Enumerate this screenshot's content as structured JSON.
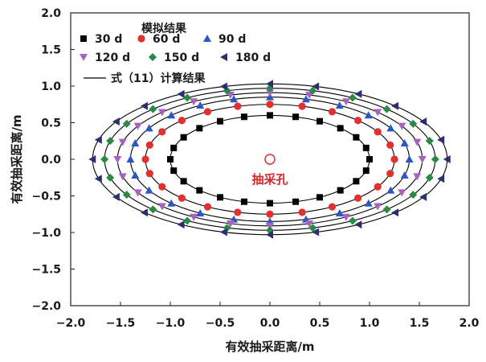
{
  "chart_data": {
    "type": "scatter",
    "xlabel": "有效抽采距离/m",
    "ylabel": "有效抽采距离/m",
    "xlim": [
      -2.0,
      2.0
    ],
    "ylim": [
      -2.0,
      2.0
    ],
    "x_ticks": [
      "−2.0",
      "−1.5",
      "−1.0",
      "−0.5",
      "0.0",
      "0.5",
      "1.0",
      "1.5",
      "2.0"
    ],
    "y_ticks": [
      "−2.0",
      "−1.5",
      "−1.0",
      "−0.5",
      "0.0",
      "0.5",
      "1.0",
      "1.5",
      "2.0"
    ],
    "grid": false,
    "legend_title": "模拟结果",
    "legend_placement": "top-left",
    "curve_label": "式（11）计算结果",
    "annotation": {
      "label": "抽采孔",
      "x": 0.0,
      "y": 0.0,
      "color": "#d62728"
    },
    "series": [
      {
        "name": "30 d",
        "marker": "square",
        "color": "#000000",
        "a": 1.0,
        "b": 0.6
      },
      {
        "name": "60 d",
        "marker": "circle",
        "color": "#e03030",
        "a": 1.25,
        "b": 0.75
      },
      {
        "name": "90 d",
        "marker": "triangle-up",
        "color": "#2a56c6",
        "a": 1.4,
        "b": 0.85
      },
      {
        "name": "120 d",
        "marker": "triangle-down",
        "color": "#a862c0",
        "a": 1.53,
        "b": 0.91
      },
      {
        "name": "150 d",
        "marker": "diamond",
        "color": "#2a8a45",
        "a": 1.66,
        "b": 0.97
      },
      {
        "name": "180 d",
        "marker": "triangle-left",
        "color": "#2e2e6e",
        "a": 1.78,
        "b": 1.03
      }
    ],
    "angles_deg": [
      0,
      15,
      30,
      45,
      60,
      75,
      90,
      105,
      120,
      135,
      150,
      165,
      180,
      195,
      210,
      225,
      240,
      255,
      270,
      285,
      300,
      315,
      330,
      345
    ]
  }
}
